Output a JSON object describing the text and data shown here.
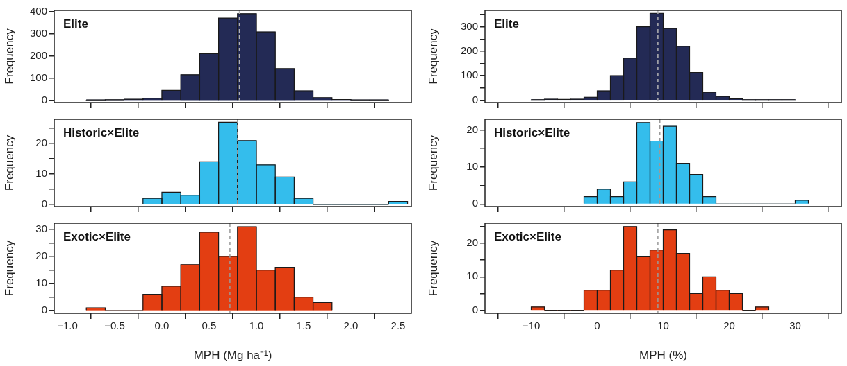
{
  "chart_data": [
    {
      "type": "histogram",
      "title": "Elite",
      "ylabel": "Frequency",
      "color": "#232a55",
      "bins": [
        -0.8,
        -0.6,
        -0.4,
        -0.2,
        0,
        0.2,
        0.4,
        0.6,
        0.8,
        1.0,
        1.2,
        1.4,
        1.6,
        1.8,
        2.0,
        2.2,
        2.4
      ],
      "values": [
        2,
        3,
        5,
        10,
        45,
        115,
        210,
        370,
        390,
        308,
        143,
        43,
        12,
        4,
        2,
        2
      ],
      "xlim": [
        -1.14,
        2.64
      ],
      "xticks": [
        -1,
        -0.5,
        0,
        0.5,
        1,
        1.5,
        2,
        2.5
      ],
      "ylim": [
        -10,
        405
      ],
      "yticks": [
        0,
        100,
        200,
        300,
        400
      ],
      "tick_labels": "y",
      "ref_lines": [
        {
          "axis": "x",
          "value": 0.82,
          "color": "#b4b4b4",
          "line_style": "dashed"
        }
      ]
    },
    {
      "type": "histogram",
      "title": "Elite",
      "ylabel": "Frequency",
      "color": "#232a55",
      "bins": [
        -10,
        -8,
        -6,
        -4,
        -2,
        0,
        2,
        4,
        6,
        8,
        10,
        12,
        14,
        16,
        18,
        20,
        22,
        24,
        26,
        28,
        30
      ],
      "values": [
        2,
        4,
        3,
        4,
        12,
        38,
        100,
        172,
        300,
        355,
        293,
        220,
        113,
        32,
        15,
        6,
        2,
        2,
        2,
        2
      ],
      "xlim": [
        -17,
        37
      ],
      "xticks": [
        -10,
        0,
        10,
        20,
        30
      ],
      "ylim": [
        -10,
        367
      ],
      "yticks": [
        0,
        {
          "value": 50,
          "label": null
        },
        100,
        {
          "value": 150,
          "label": null
        },
        200,
        {
          "value": 250,
          "label": null
        },
        300,
        {
          "value": 350,
          "label": null
        }
      ],
      "tick_labels": "y",
      "ref_lines": [
        {
          "axis": "x",
          "value": 9.2,
          "color": "#b4b4b4",
          "line_style": "dashed"
        }
      ]
    },
    {
      "type": "histogram",
      "title": "Historic×Elite",
      "ylabel": "Frequency",
      "color": "#34bdec",
      "bins": [
        -0.2,
        0,
        0.2,
        0.4,
        0.6,
        0.8,
        1.0,
        1.2,
        1.4,
        1.6,
        1.8,
        2.0,
        2.2,
        2.4,
        2.6
      ],
      "values": [
        2,
        4,
        3,
        14,
        27,
        21,
        13,
        9,
        2,
        0,
        0,
        0,
        0,
        1
      ],
      "xlim": [
        -1.14,
        2.64
      ],
      "xticks": [
        -1,
        -0.5,
        0,
        0.5,
        1,
        1.5,
        2,
        2.5
      ],
      "ylim": [
        -0.7,
        28
      ],
      "yticks": [
        0,
        {
          "value": 5,
          "label": null
        },
        10,
        {
          "value": 15,
          "label": null
        },
        20,
        {
          "value": 25,
          "label": null
        }
      ],
      "tick_labels": "y",
      "ref_lines": [
        {
          "axis": "x",
          "value": 0.8,
          "color": "#9a9a9a",
          "line_style": "dashed"
        }
      ]
    },
    {
      "type": "histogram",
      "title": "Historic×Elite",
      "ylabel": "Frequency",
      "color": "#34bdec",
      "bins": [
        -2,
        0,
        2,
        4,
        6,
        8,
        10,
        12,
        14,
        16,
        18,
        20,
        22,
        24,
        26,
        28,
        30,
        32
      ],
      "values": [
        2,
        4,
        2,
        6,
        22,
        17,
        21,
        11,
        8,
        2,
        0,
        0,
        0,
        0,
        0,
        0,
        1
      ],
      "xlim": [
        -17,
        37
      ],
      "xticks": [
        -10,
        0,
        10,
        20,
        30
      ],
      "ylim": [
        -0.7,
        22.9
      ],
      "yticks": [
        0,
        {
          "value": 5,
          "label": null
        },
        10,
        {
          "value": 15,
          "label": null
        },
        20
      ],
      "tick_labels": "y",
      "ref_lines": [
        {
          "axis": "x",
          "value": 9.5,
          "color": "#9a9a9a",
          "line_style": "dashed"
        }
      ]
    },
    {
      "type": "histogram",
      "title": "Exotic×Elite",
      "ylabel": "Frequency",
      "xlabel": "MPH (Mg ha⁻¹)",
      "color": "#e33e12",
      "bins": [
        -0.8,
        -0.6,
        -0.4,
        -0.2,
        0,
        0.2,
        0.4,
        0.6,
        0.8,
        1.0,
        1.2,
        1.4,
        1.6,
        1.8
      ],
      "values": [
        1,
        0,
        0,
        6,
        9,
        17,
        29,
        20,
        31,
        15,
        16,
        5,
        3
      ],
      "xlim": [
        -1.14,
        2.64
      ],
      "xticks": [
        {
          "value": -1,
          "label": "−1.0"
        },
        {
          "value": -0.5,
          "label": "−0.5"
        },
        {
          "value": 0,
          "label": "0.0"
        },
        0.5,
        {
          "value": 1,
          "label": "1.0"
        },
        1.5,
        {
          "value": 2,
          "label": "2.0"
        },
        2.5
      ],
      "ylim": [
        -1,
        32.3
      ],
      "yticks": [
        0,
        {
          "value": 5,
          "label": null
        },
        10,
        {
          "value": 15,
          "label": null
        },
        20,
        {
          "value": 25,
          "label": null
        },
        30
      ],
      "ref_lines": [
        {
          "axis": "x",
          "value": 0.72,
          "color": "#9a9a9a",
          "line_style": "dashed"
        }
      ]
    },
    {
      "type": "histogram",
      "title": "Exotic×Elite",
      "ylabel": "Frequency",
      "xlabel": "MPH (%)",
      "color": "#e33e12",
      "bins": [
        -10,
        -8,
        -6,
        -4,
        -2,
        0,
        2,
        4,
        6,
        8,
        10,
        12,
        14,
        16,
        18,
        20,
        22,
        24,
        26
      ],
      "values": [
        1,
        0,
        0,
        0,
        6,
        6,
        12,
        25,
        16,
        18,
        24,
        17,
        5,
        10,
        6,
        5,
        0,
        1
      ],
      "xlim": [
        -17,
        37
      ],
      "xticks": [
        {
          "value": -10,
          "label": "−10"
        },
        0,
        10,
        20,
        30
      ],
      "ylim": [
        -0.9,
        26
      ],
      "yticks": [
        0,
        {
          "value": 5,
          "label": null
        },
        10,
        {
          "value": 15,
          "label": null
        },
        20,
        {
          "value": 25,
          "label": null
        }
      ],
      "ref_lines": [
        {
          "axis": "x",
          "value": 9.2,
          "color": "#9a9a9a",
          "line_style": "dashed"
        }
      ]
    }
  ]
}
